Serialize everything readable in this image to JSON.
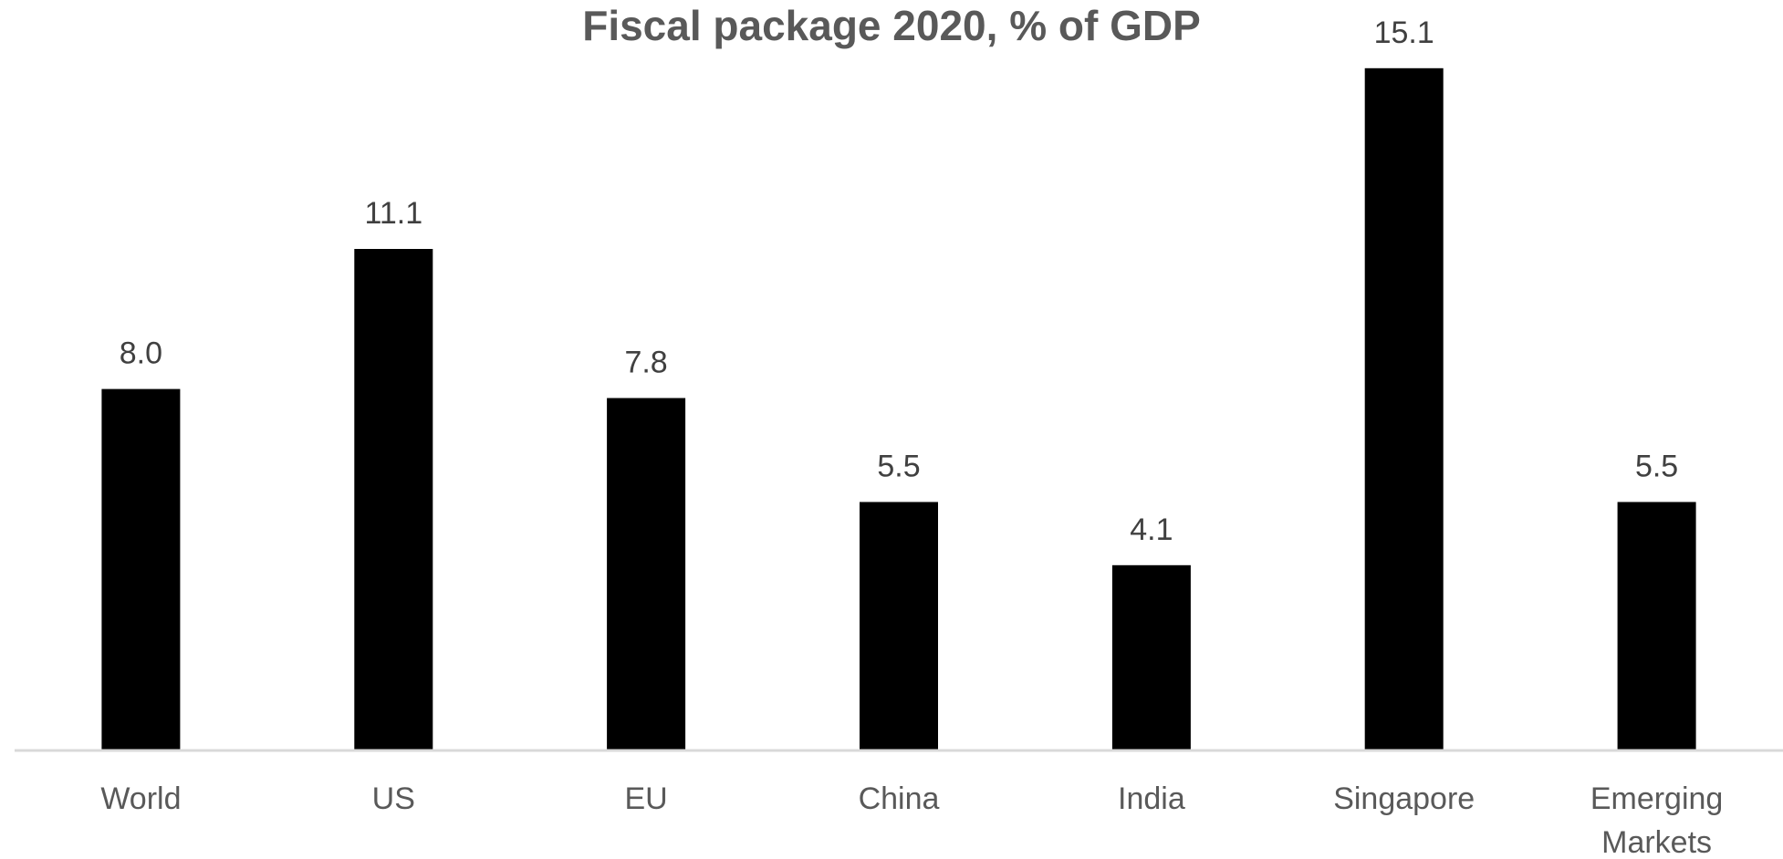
{
  "chart_data": {
    "type": "bar",
    "title": "Fiscal package 2020, % of GDP",
    "xlabel": "",
    "ylabel": "",
    "categories": [
      "World",
      "US",
      "EU",
      "China",
      "India",
      "Singapore",
      "Emerging Markets"
    ],
    "category_lines": [
      [
        "World"
      ],
      [
        "US"
      ],
      [
        "EU"
      ],
      [
        "China"
      ],
      [
        "India"
      ],
      [
        "Singapore"
      ],
      [
        "Emerging",
        "Markets"
      ]
    ],
    "values": [
      8.0,
      11.1,
      7.8,
      5.5,
      4.1,
      15.1,
      5.5
    ],
    "value_labels": [
      "8.0",
      "11.1",
      "7.8",
      "5.5",
      "4.1",
      "15.1",
      "5.5"
    ],
    "ylim": [
      0,
      16.7
    ],
    "grid": false,
    "legend": "none",
    "bar_color": "#000000",
    "axis_color": "#d9d9d9"
  }
}
